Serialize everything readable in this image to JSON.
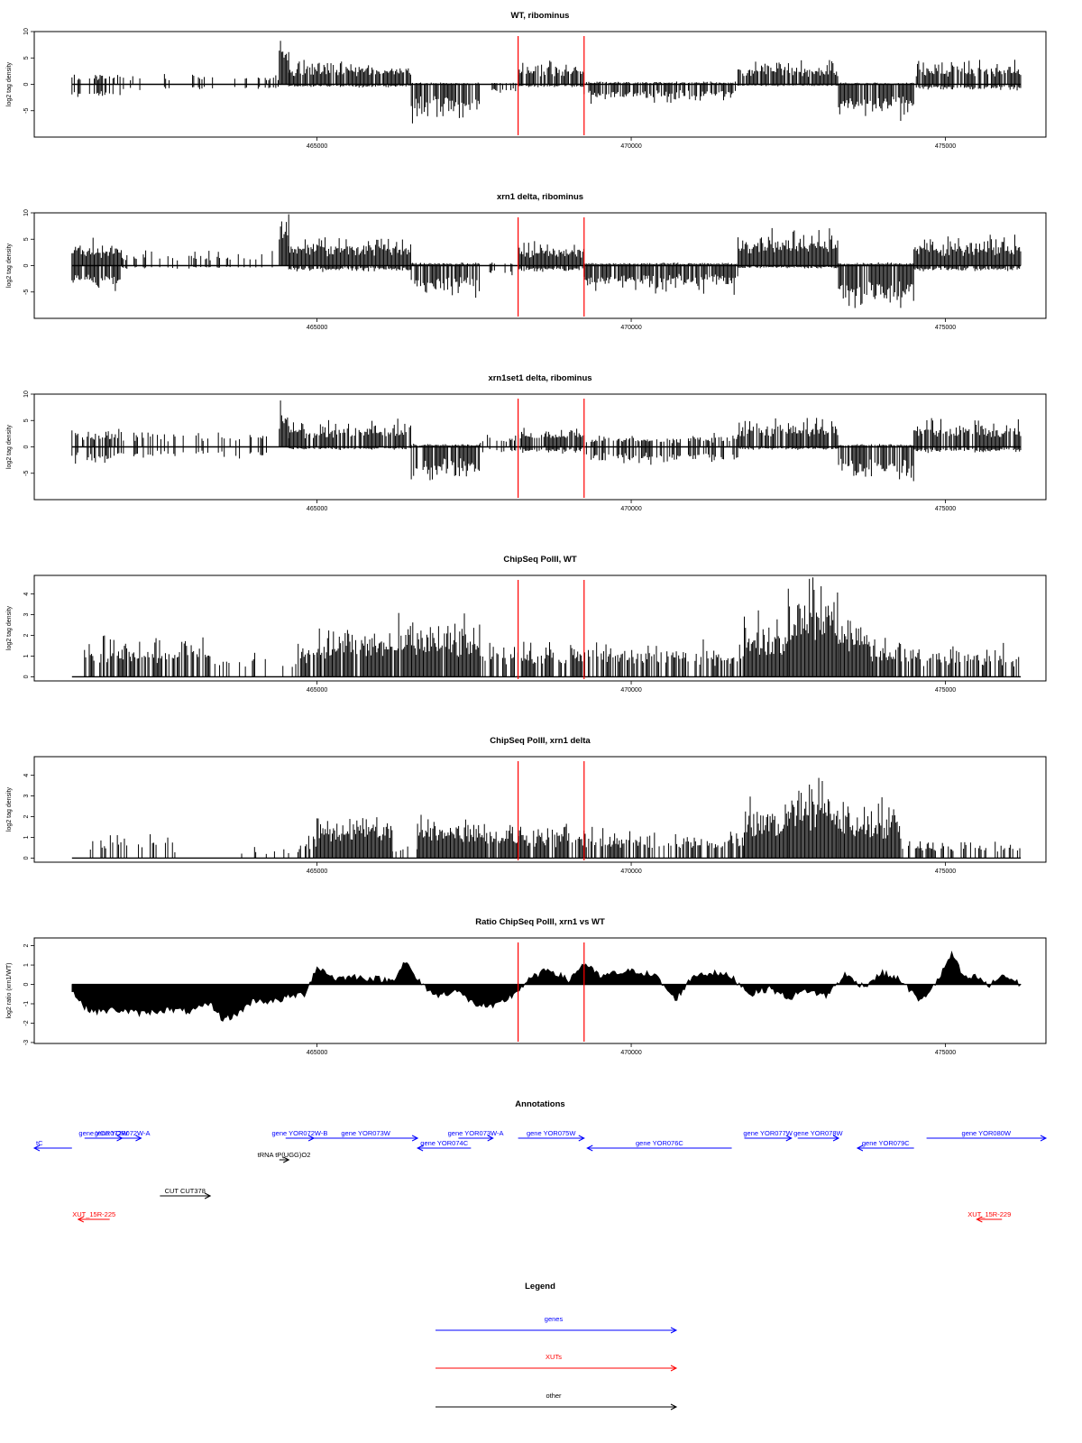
{
  "chart_data": [
    {
      "type": "bar",
      "title": "WT, ribominus",
      "ylabel": "log2 tag density",
      "ylim": [
        -10,
        10
      ],
      "yticks": [
        -5,
        0,
        5,
        10
      ],
      "xlim": [
        460500,
        476600
      ],
      "xticks": [
        "465000",
        "470000",
        "475000"
      ],
      "baseline_span": [
        461100,
        476200
      ],
      "markers": [
        468200,
        469250
      ],
      "marker_color": "#ff0000",
      "grid": false,
      "segments": [
        {
          "from": 461100,
          "to": 461900,
          "plus": 2,
          "minus": -3,
          "density": 0.5
        },
        {
          "from": 461900,
          "to": 464400,
          "plus": 2,
          "minus": -1,
          "density": 0.2
        },
        {
          "from": 464400,
          "to": 464550,
          "plus": 9,
          "minus": 0,
          "density": 1
        },
        {
          "from": 464550,
          "to": 466500,
          "plus": 4,
          "minus": -0.5,
          "density": 0.9
        },
        {
          "from": 466500,
          "to": 467600,
          "plus": 0.3,
          "minus": -6,
          "density": 0.9
        },
        {
          "from": 467600,
          "to": 468200,
          "plus": 0.3,
          "minus": -2,
          "density": 0.3
        },
        {
          "from": 468200,
          "to": 469250,
          "plus": 4,
          "minus": -0.5,
          "density": 0.8
        },
        {
          "from": 469250,
          "to": 471700,
          "plus": 0.5,
          "minus": -3,
          "density": 0.8
        },
        {
          "from": 471700,
          "to": 473300,
          "plus": 4,
          "minus": -0.3,
          "density": 0.9
        },
        {
          "from": 473300,
          "to": 474500,
          "plus": 0.3,
          "minus": -6,
          "density": 1
        },
        {
          "from": 474500,
          "to": 476200,
          "plus": 4,
          "minus": -1,
          "density": 0.8
        }
      ]
    },
    {
      "type": "bar",
      "title": "xrn1 delta, ribominus",
      "ylabel": "log2 tag density",
      "ylim": [
        -10,
        10
      ],
      "yticks": [
        -5,
        0,
        5,
        10
      ],
      "xlim": [
        460500,
        476600
      ],
      "xticks": [
        "465000",
        "470000",
        "475000"
      ],
      "baseline_span": [
        461100,
        476200
      ],
      "markers": [
        468200,
        469250
      ],
      "marker_color": "#ff0000",
      "grid": false,
      "segments": [
        {
          "from": 461100,
          "to": 461900,
          "plus": 4,
          "minus": -4,
          "density": 1
        },
        {
          "from": 461900,
          "to": 464400,
          "plus": 2.5,
          "minus": -0.5,
          "density": 0.3
        },
        {
          "from": 464400,
          "to": 464550,
          "plus": 9,
          "minus": 0,
          "density": 1
        },
        {
          "from": 464550,
          "to": 466500,
          "plus": 5,
          "minus": -1,
          "density": 1
        },
        {
          "from": 466500,
          "to": 467600,
          "plus": 0.5,
          "minus": -5.5,
          "density": 1
        },
        {
          "from": 467600,
          "to": 468200,
          "plus": 0.5,
          "minus": -2,
          "density": 0.3
        },
        {
          "from": 468200,
          "to": 469250,
          "plus": 4,
          "minus": -1,
          "density": 1
        },
        {
          "from": 469250,
          "to": 471700,
          "plus": 0.5,
          "minus": -4.5,
          "density": 1
        },
        {
          "from": 471700,
          "to": 473300,
          "plus": 6,
          "minus": -0.5,
          "density": 1
        },
        {
          "from": 473300,
          "to": 474500,
          "plus": 0.5,
          "minus": -7.5,
          "density": 1
        },
        {
          "from": 474500,
          "to": 476200,
          "plus": 5,
          "minus": -1,
          "density": 1
        }
      ]
    },
    {
      "type": "bar",
      "title": "xrn1set1 delta, ribominus",
      "ylabel": "log2 tag density",
      "ylim": [
        -10,
        10
      ],
      "yticks": [
        -5,
        0,
        5,
        10
      ],
      "xlim": [
        460500,
        476600
      ],
      "xticks": [
        "465000",
        "470000",
        "475000"
      ],
      "baseline_span": [
        461100,
        476200
      ],
      "markers": [
        468200,
        469250
      ],
      "marker_color": "#ff0000",
      "grid": false,
      "segments": [
        {
          "from": 461100,
          "to": 461900,
          "plus": 3,
          "minus": -3,
          "density": 0.6
        },
        {
          "from": 461900,
          "to": 464400,
          "plus": 3,
          "minus": -2,
          "density": 0.35
        },
        {
          "from": 464400,
          "to": 464550,
          "plus": 9,
          "minus": 0,
          "density": 1
        },
        {
          "from": 464550,
          "to": 466500,
          "plus": 4.5,
          "minus": -0.5,
          "density": 0.9
        },
        {
          "from": 466500,
          "to": 467600,
          "plus": 0.5,
          "minus": -6,
          "density": 0.9
        },
        {
          "from": 467600,
          "to": 468200,
          "plus": 2,
          "minus": -1,
          "density": 0.4
        },
        {
          "from": 468200,
          "to": 469250,
          "plus": 3.5,
          "minus": -1,
          "density": 0.7
        },
        {
          "from": 469250,
          "to": 471700,
          "plus": 2,
          "minus": -3,
          "density": 0.6
        },
        {
          "from": 471700,
          "to": 473300,
          "plus": 5,
          "minus": -0.5,
          "density": 0.8
        },
        {
          "from": 473300,
          "to": 474500,
          "plus": 0.5,
          "minus": -6,
          "density": 0.9
        },
        {
          "from": 474500,
          "to": 476200,
          "plus": 5,
          "minus": -1,
          "density": 0.8
        }
      ]
    },
    {
      "type": "bar",
      "title": "ChipSeq PolII, WT",
      "ylabel": "log2 tag density",
      "ylim": [
        -0.2,
        4.9
      ],
      "yticks": [
        0,
        1,
        2,
        3,
        4
      ],
      "xlim": [
        460500,
        476600
      ],
      "xticks": [
        "465000",
        "470000",
        "475000"
      ],
      "baseline_span": [
        461100,
        476200
      ],
      "markers": [
        468200,
        469250
      ],
      "marker_color": "#ff0000",
      "grid": false,
      "segments": [
        {
          "from": 461300,
          "to": 463300,
          "plus": 1.8,
          "minus": 0,
          "density": 0.7
        },
        {
          "from": 463300,
          "to": 464700,
          "plus": 1,
          "minus": 0,
          "density": 0.15
        },
        {
          "from": 464700,
          "to": 465000,
          "plus": 1.8,
          "minus": 0,
          "density": 0.6
        },
        {
          "from": 465000,
          "to": 466300,
          "plus": 2.2,
          "minus": 0,
          "density": 0.9
        },
        {
          "from": 466300,
          "to": 467600,
          "plus": 2.5,
          "minus": 0,
          "density": 0.9
        },
        {
          "from": 467600,
          "to": 469300,
          "plus": 1.6,
          "minus": 0,
          "density": 0.7
        },
        {
          "from": 469300,
          "to": 471800,
          "plus": 1.5,
          "minus": 0,
          "density": 0.6
        },
        {
          "from": 471800,
          "to": 472500,
          "plus": 2.8,
          "minus": 0,
          "density": 1
        },
        {
          "from": 472500,
          "to": 473300,
          "plus": 4.3,
          "minus": 0,
          "density": 1
        },
        {
          "from": 473300,
          "to": 473800,
          "plus": 3.2,
          "minus": 0,
          "density": 1
        },
        {
          "from": 473800,
          "to": 474300,
          "plus": 1.8,
          "minus": 0,
          "density": 0.9
        },
        {
          "from": 474300,
          "to": 476200,
          "plus": 1.4,
          "minus": 0,
          "density": 0.6
        }
      ]
    },
    {
      "type": "bar",
      "title": "ChipSeq PolII, xrn1 delta",
      "ylabel": "log2 tag density",
      "ylim": [
        -0.2,
        4.9
      ],
      "yticks": [
        0,
        1,
        2,
        3,
        4
      ],
      "xlim": [
        460500,
        476600
      ],
      "xticks": [
        "465000",
        "470000",
        "475000"
      ],
      "baseline_span": [
        461100,
        476200
      ],
      "markers": [
        468200,
        469250
      ],
      "marker_color": "#ff0000",
      "grid": false,
      "segments": [
        {
          "from": 461300,
          "to": 462700,
          "plus": 1,
          "minus": 0,
          "density": 0.3
        },
        {
          "from": 462700,
          "to": 464700,
          "plus": 0.5,
          "minus": 0,
          "density": 0.05
        },
        {
          "from": 464700,
          "to": 465000,
          "plus": 1,
          "minus": 0,
          "density": 0.5
        },
        {
          "from": 465000,
          "to": 466200,
          "plus": 2,
          "minus": 0,
          "density": 1
        },
        {
          "from": 466200,
          "to": 466600,
          "plus": 0.6,
          "minus": 0,
          "density": 0.3
        },
        {
          "from": 466600,
          "to": 467700,
          "plus": 1.9,
          "minus": 0,
          "density": 1
        },
        {
          "from": 467700,
          "to": 469400,
          "plus": 1.5,
          "minus": 0,
          "density": 0.8
        },
        {
          "from": 469400,
          "to": 471800,
          "plus": 1.2,
          "minus": 0,
          "density": 0.6
        },
        {
          "from": 471800,
          "to": 472500,
          "plus": 2.5,
          "minus": 0,
          "density": 1
        },
        {
          "from": 472500,
          "to": 473300,
          "plus": 3.6,
          "minus": 0,
          "density": 1
        },
        {
          "from": 473300,
          "to": 474300,
          "plus": 2.5,
          "minus": 0,
          "density": 1
        },
        {
          "from": 474300,
          "to": 476200,
          "plus": 0.8,
          "minus": 0,
          "density": 0.4
        }
      ]
    },
    {
      "type": "area",
      "title": "Ratio ChipSeq PolII, xrn1 vs WT",
      "ylabel": "log2 ratio (xrn1/WT)",
      "ylim": [
        -3.05,
        2.4
      ],
      "yticks": [
        -3,
        -2,
        -1,
        0,
        1,
        2
      ],
      "xlim": [
        460500,
        476600
      ],
      "xticks": [
        "465000",
        "470000",
        "475000"
      ],
      "baseline_span": [
        461100,
        476200
      ],
      "markers": [
        468200,
        469250
      ],
      "marker_color": "#ff0000",
      "grid": false,
      "x": [
        461100,
        461300,
        461500,
        461800,
        462200,
        462600,
        463000,
        463300,
        463500,
        463700,
        464000,
        464300,
        464600,
        464800,
        465000,
        465300,
        465600,
        465900,
        466200,
        466400,
        466600,
        466900,
        467200,
        467500,
        467800,
        468100,
        468400,
        468700,
        469000,
        469250,
        469500,
        469800,
        470100,
        470400,
        470700,
        471000,
        471300,
        471600,
        471900,
        472200,
        472500,
        472800,
        473100,
        473400,
        473700,
        474000,
        474300,
        474600,
        474900,
        475100,
        475300,
        475500,
        475700,
        475900,
        476200
      ],
      "values": [
        -0.3,
        -1.2,
        -1.4,
        -1.3,
        -1.5,
        -1.3,
        -1.4,
        -1.0,
        -1.8,
        -1.6,
        -0.8,
        -0.9,
        -0.6,
        -0.5,
        0.9,
        0.3,
        0.4,
        0.3,
        0.2,
        1.2,
        0.2,
        -0.6,
        -0.3,
        -1.0,
        -1.2,
        -0.6,
        0.3,
        0.8,
        0.2,
        1.1,
        0.4,
        0.6,
        0.7,
        0.4,
        -0.8,
        0.5,
        0.6,
        0.4,
        -0.5,
        -0.2,
        -0.7,
        -0.3,
        -0.6,
        0.5,
        -0.1,
        0.6,
        0.2,
        -0.9,
        0.3,
        1.6,
        0.3,
        0.4,
        -0.1,
        0.5,
        0.0
      ]
    }
  ],
  "annotations": {
    "title": "Annotations",
    "colors": {
      "genes": "#0000ff",
      "XUTs": "#ff0000",
      "other": "#000000"
    },
    "items": [
      {
        "label": "tC",
        "from": 460500,
        "to": 461100,
        "row": 1,
        "strand": "-",
        "class": "genes"
      },
      {
        "label": "gene YOR072W",
        "from": 461300,
        "to": 461900,
        "row": 0,
        "strand": "+",
        "class": "genes"
      },
      {
        "label": "gene YOR072W-A",
        "from": 461600,
        "to": 462200,
        "row": 0,
        "strand": "+",
        "class": "genes"
      },
      {
        "label": "gene YOR072W-B",
        "from": 464500,
        "to": 464950,
        "row": 0,
        "strand": "+",
        "class": "genes"
      },
      {
        "label": "gene YOR073W",
        "from": 464950,
        "to": 466600,
        "row": 0,
        "strand": "+",
        "class": "genes"
      },
      {
        "label": "gene YOR073W-A",
        "from": 467250,
        "to": 467800,
        "row": 0,
        "strand": "+",
        "class": "genes"
      },
      {
        "label": "gene YOR074C",
        "from": 466600,
        "to": 467450,
        "row": 1,
        "strand": "-",
        "class": "genes"
      },
      {
        "label": "gene YOR075W",
        "from": 468200,
        "to": 469250,
        "row": 0,
        "strand": "+",
        "class": "genes"
      },
      {
        "label": "gene YOR076C",
        "from": 469300,
        "to": 471600,
        "row": 1,
        "strand": "-",
        "class": "genes"
      },
      {
        "label": "gene YOR077W",
        "from": 471800,
        "to": 472550,
        "row": 0,
        "strand": "+",
        "class": "genes"
      },
      {
        "label": "gene YOR078W",
        "from": 472650,
        "to": 473300,
        "row": 0,
        "strand": "+",
        "class": "genes"
      },
      {
        "label": "gene YOR079C",
        "from": 473600,
        "to": 474500,
        "row": 1,
        "strand": "-",
        "class": "genes"
      },
      {
        "label": "gene YOR080W",
        "from": 474700,
        "to": 476600,
        "row": 0,
        "strand": "+",
        "class": "genes"
      },
      {
        "label": "tRNA tP(UGG)O2",
        "from": 464400,
        "to": 464550,
        "row": 2,
        "strand": "+",
        "class": "other"
      },
      {
        "label": "CUT CUT378",
        "from": 462500,
        "to": 463300,
        "row": 3,
        "strand": "+",
        "class": "other"
      },
      {
        "label": "XUT_15R-225",
        "from": 461200,
        "to": 461700,
        "row": 4,
        "strand": "-",
        "class": "XUTs"
      },
      {
        "label": "XUT_15R-229",
        "from": 475500,
        "to": 475900,
        "row": 4,
        "strand": "-",
        "class": "XUTs"
      }
    ]
  },
  "legend": {
    "title": "Legend",
    "entries": [
      {
        "label": "genes",
        "color": "#0000ff"
      },
      {
        "label": "XUTs",
        "color": "#ff0000"
      },
      {
        "label": "other",
        "color": "#000000"
      }
    ]
  }
}
